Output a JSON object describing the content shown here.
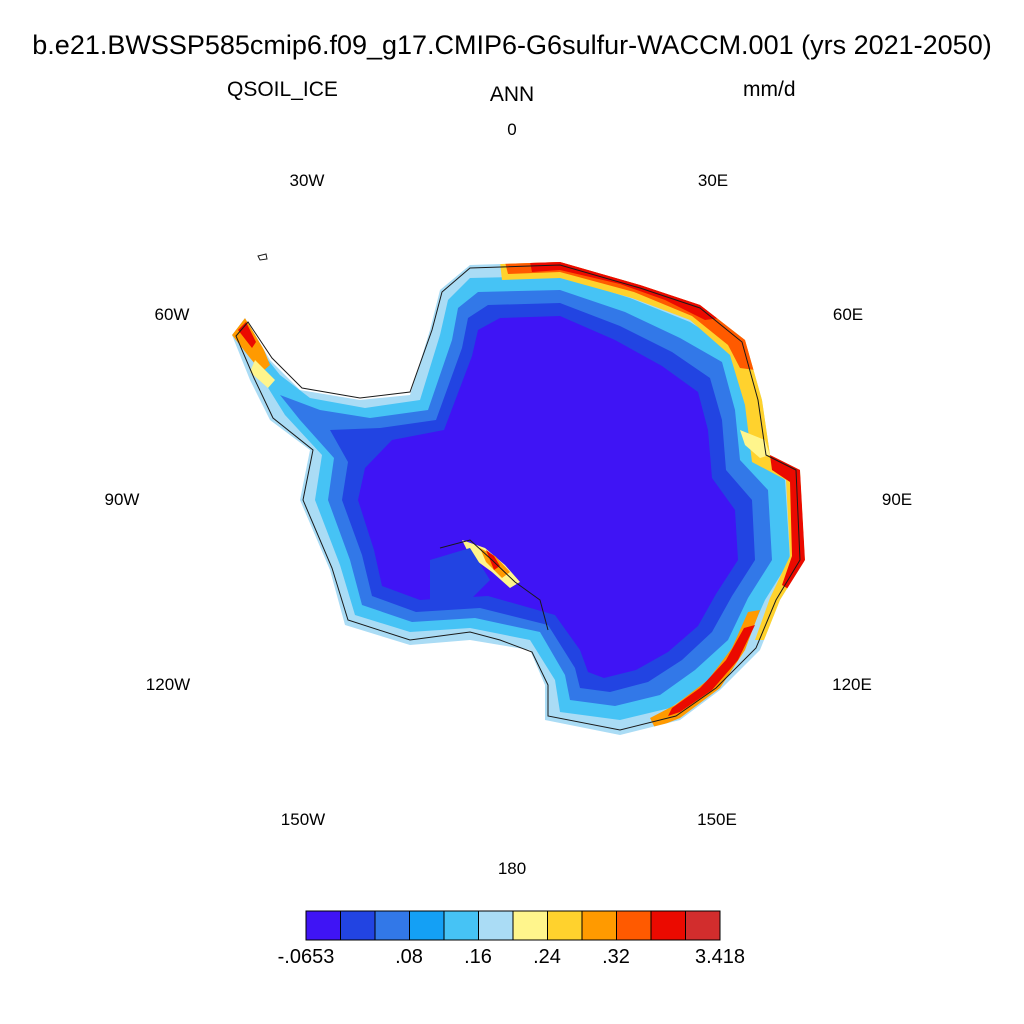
{
  "title": "b.e21.BWSSP585cmip6.f09_g17.CMIP6-G6sulfur-WACCM.001 (yrs 2021-2050)",
  "variable": "QSOIL_ICE",
  "season": "ANN",
  "units": "mm/d",
  "longitude_labels": {
    "lon_0": "0",
    "lon_30e": "30E",
    "lon_60e": "60E",
    "lon_90e": "90E",
    "lon_120e": "120E",
    "lon_150e": "150E",
    "lon_180": "180",
    "lon_150w": "150W",
    "lon_120w": "120W",
    "lon_90w": "90W",
    "lon_60w": "60W",
    "lon_30w": "30W"
  },
  "colorbar": {
    "colors": [
      "#3f14f5",
      "#2244e2",
      "#3278e8",
      "#14a0f5",
      "#46c3f5",
      "#aadcf5",
      "#fff58c",
      "#ffd22d",
      "#ff9a00",
      "#ff5a00",
      "#eb0a00",
      "#d22d2d"
    ],
    "labels": {
      "l0": "-.0653",
      "l1": ".08",
      "l2": ".16",
      "l3": ".24",
      "l4": ".32",
      "l5": "3.418"
    }
  },
  "map": {
    "projection": "south polar stereographic",
    "region": "Antarctica",
    "pattern": "low values (deep blue) over the interior plateau, increasing toward the coast with highest values (red) along the East Antarctic coast from 30E to 130E and the Antarctic Peninsula"
  }
}
